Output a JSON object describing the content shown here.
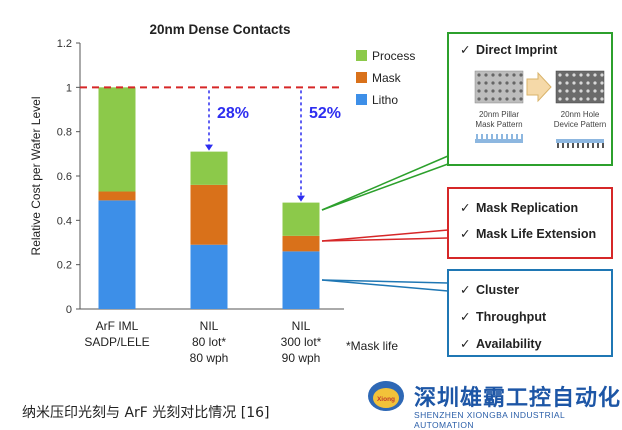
{
  "chart_data": {
    "type": "bar",
    "stacked": true,
    "title": "20nm Dense Contacts",
    "ylabel": "Relative Cost per Wafer Level",
    "ylim": [
      0,
      1.2
    ],
    "yticks": [
      "0",
      "0.2",
      "0.4",
      "0.6",
      "0.8",
      "1",
      "1.2"
    ],
    "ytick_values": [
      0,
      0.2,
      0.4,
      0.6,
      0.8,
      1.0,
      1.2
    ],
    "reference_line": 1.0,
    "categories": [
      [
        "ArF IML",
        "SADP/LELE"
      ],
      [
        "NIL",
        "80 lot*",
        "80 wph"
      ],
      [
        "NIL",
        "300 lot*",
        "90 wph"
      ]
    ],
    "series": [
      {
        "name": "Litho",
        "color": "#3d8fe8",
        "values": [
          0.49,
          0.29,
          0.26
        ]
      },
      {
        "name": "Mask",
        "color": "#d9711a",
        "values": [
          0.04,
          0.27,
          0.07
        ]
      },
      {
        "name": "Process",
        "color": "#8cc94a",
        "values": [
          0.47,
          0.15,
          0.15
        ]
      }
    ],
    "annotations": [
      {
        "text": "28%",
        "bar": 1
      },
      {
        "text": "52%",
        "bar": 2
      }
    ],
    "footnote": "*Mask life",
    "legend_position": "top-right"
  },
  "callouts": [
    {
      "color": "#2ca02c",
      "items": [
        "Direct Imprint"
      ],
      "sub": {
        "left": [
          "20nm Pillar",
          "Mask Pattern"
        ],
        "right": [
          "20nm Hole",
          "Device Pattern"
        ]
      }
    },
    {
      "color": "#d62728",
      "items": [
        "Mask Replication",
        "Mask Life Extension"
      ]
    },
    {
      "color": "#1f77b4",
      "items": [
        "Cluster",
        "Throughput",
        "Availability"
      ]
    }
  ],
  "caption": "纳米压印光刻与 ArF 光刻对比情况 [16]",
  "brand": {
    "name_cn": "深圳雄霸工控自动化",
    "name_en": "SHENZHEN XIONGBA INDUSTRIAL AUTOMATION",
    "logo_text": "Xiong"
  }
}
